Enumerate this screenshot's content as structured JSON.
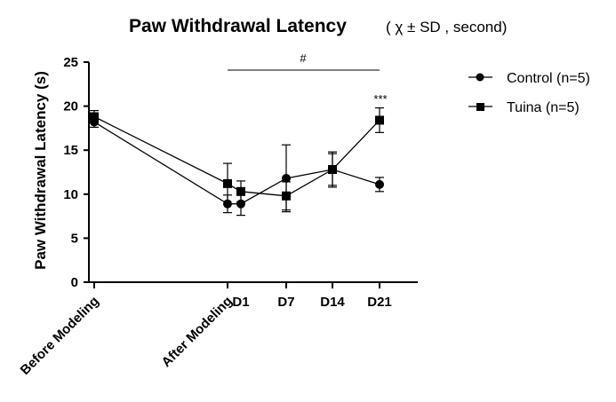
{
  "chart_data": {
    "type": "line",
    "title": "Paw Withdrawal Latency",
    "title_note": "( χ ± SD , second)",
    "ylabel": "Paw Withdrawal Latency (s)",
    "xlabel": "",
    "ylim": [
      0,
      25
    ],
    "yticks": [
      0,
      5,
      10,
      15,
      20,
      25
    ],
    "categories": [
      "Before Modeling",
      "After Modeling",
      "D1",
      "D7",
      "D14",
      "D21"
    ],
    "legend_position": "top-right",
    "grid": false,
    "series": [
      {
        "name": "Control (n=5)",
        "marker": "circle",
        "x_positions": [
          0,
          5,
          5.3,
          7.2,
          8.5,
          10.0
        ],
        "values": [
          18.2,
          8.9,
          8.9,
          11.8,
          12.8,
          11.1
        ],
        "sd": [
          0.6,
          1.0,
          1.3,
          3.8,
          2.0,
          0.8
        ]
      },
      {
        "name": "Tuina (n=5)",
        "marker": "square",
        "x_positions": [
          0,
          5,
          5.3,
          7.2,
          8.5,
          10.0
        ],
        "values": [
          18.8,
          11.2,
          10.3,
          9.8,
          12.8,
          18.4
        ],
        "sd": [
          0.7,
          2.3,
          1.2,
          1.6,
          1.8,
          1.4
        ]
      }
    ],
    "annotations": {
      "hash": "#",
      "stars": "***"
    }
  },
  "colors": {
    "ink": "#000000",
    "background": "#ffffff"
  }
}
